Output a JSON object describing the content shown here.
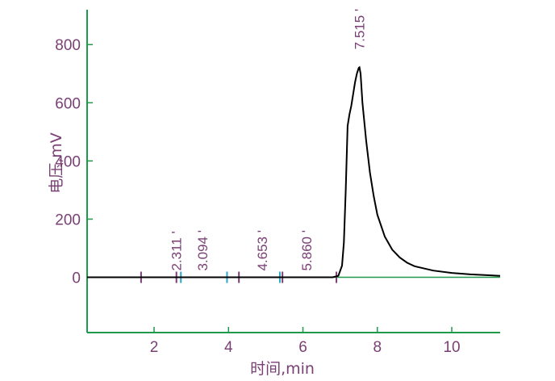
{
  "chart_data": {
    "type": "line",
    "xlabel": "时间,min",
    "ylabel": "电压,mV",
    "xlim": [
      0.2,
      11.3
    ],
    "ylim": [
      -190,
      920
    ],
    "xticks": [
      2,
      4,
      6,
      8,
      10
    ],
    "yticks": [
      0,
      200,
      400,
      600,
      800
    ],
    "grid": false,
    "colors": {
      "axis": "#1f9a4a",
      "text": "#7a3f74",
      "trace": "#000000",
      "marker_a": "#7a3f74",
      "marker_b": "#2aa7c9"
    },
    "peak_labels": [
      {
        "label": "2.311 '",
        "x": 2.6
      },
      {
        "label": "3.094 '",
        "x": 3.3
      },
      {
        "label": "4.653 '",
        "x": 4.9
      },
      {
        "label": "5.860 '",
        "x": 6.1
      },
      {
        "label": "7.515 '",
        "x": 7.515
      }
    ],
    "markers": [
      {
        "x": 1.65,
        "color": "a"
      },
      {
        "x": 2.6,
        "color": "a"
      },
      {
        "x": 2.72,
        "color": "b"
      },
      {
        "x": 3.96,
        "color": "b"
      },
      {
        "x": 4.28,
        "color": "a"
      },
      {
        "x": 5.38,
        "color": "b"
      },
      {
        "x": 5.45,
        "color": "a"
      },
      {
        "x": 6.9,
        "color": "a"
      }
    ],
    "series": [
      {
        "x": [
          0.2,
          6.8,
          6.95,
          7.05,
          7.1,
          7.15,
          7.2,
          7.25,
          7.3,
          7.35,
          7.4,
          7.45,
          7.5,
          7.52,
          7.55,
          7.6,
          7.7,
          7.8,
          7.9,
          8.0,
          8.2,
          8.4,
          8.6,
          8.8,
          9.0,
          9.5,
          10.0,
          10.5,
          11.0,
          11.3
        ],
        "y": [
          0,
          0,
          5,
          40,
          120,
          300,
          520,
          560,
          590,
          630,
          670,
          700,
          720,
          722,
          700,
          600,
          470,
          360,
          280,
          215,
          140,
          95,
          68,
          50,
          38,
          23,
          15,
          10,
          7,
          5
        ]
      }
    ]
  }
}
